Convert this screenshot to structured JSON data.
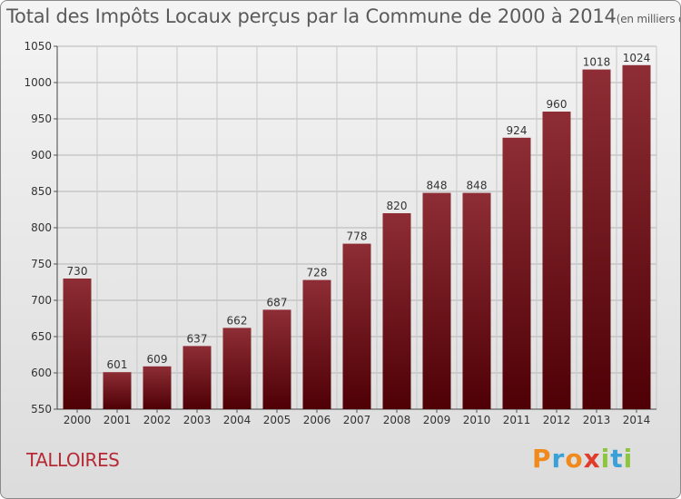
{
  "chart_data": {
    "type": "bar",
    "title": "Total des Impôts Locaux perçus par la Commune de 2000 à 2014",
    "subtitle": "(en milliers d'€)",
    "xlabel": "",
    "ylabel": "",
    "categories": [
      "2000",
      "2001",
      "2002",
      "2003",
      "2004",
      "2005",
      "2006",
      "2007",
      "2008",
      "2009",
      "2010",
      "2011",
      "2012",
      "2013",
      "2014"
    ],
    "values": [
      730,
      601,
      609,
      637,
      662,
      687,
      728,
      778,
      820,
      848,
      848,
      924,
      960,
      1018,
      1024
    ],
    "ylim": [
      550,
      1050
    ],
    "yticks": [
      550,
      600,
      650,
      700,
      750,
      800,
      850,
      900,
      950,
      1000,
      1050
    ],
    "grid": true,
    "bar_color": "#7a1e26",
    "data_labels": true
  },
  "commune": "TALLOIRES",
  "logo": {
    "letters": [
      "P",
      "r",
      "o",
      "x",
      "i",
      "t",
      "i"
    ],
    "colors": [
      "#f08a1c",
      "#3aa0d8",
      "#f08a1c",
      "#e03c2c",
      "#8cc63f",
      "#3aa0d8",
      "#8cc63f"
    ]
  }
}
